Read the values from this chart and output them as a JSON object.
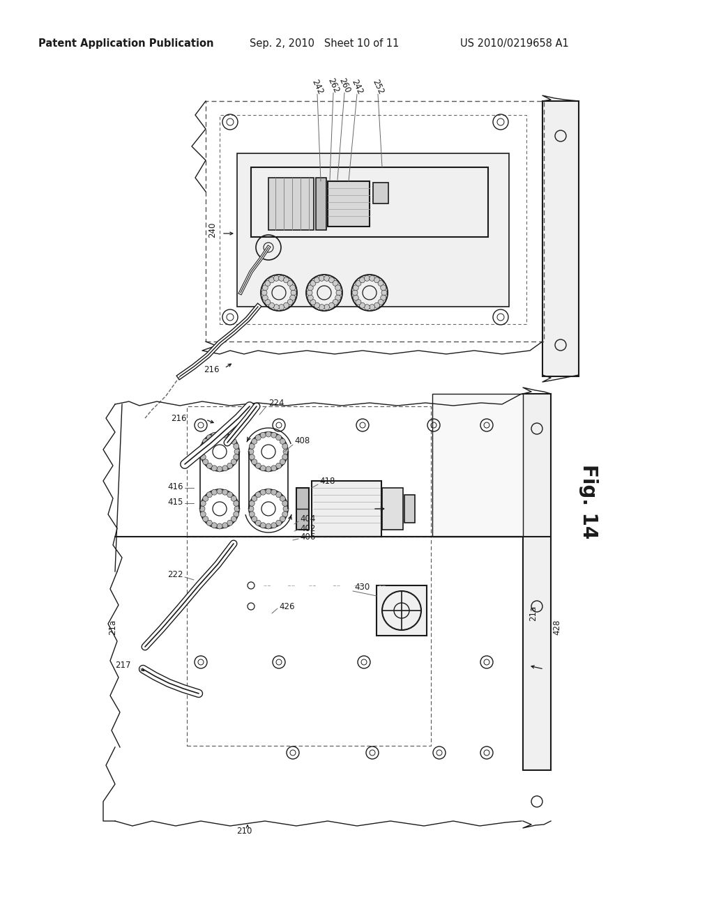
{
  "bg_color": "#ffffff",
  "line_color": "#1a1a1a",
  "header_left": "Patent Application Publication",
  "header_mid": "Sep. 2, 2010   Sheet 10 of 11",
  "header_right": "US 2010/0219658 A1",
  "fig_label": "Fig. 14"
}
